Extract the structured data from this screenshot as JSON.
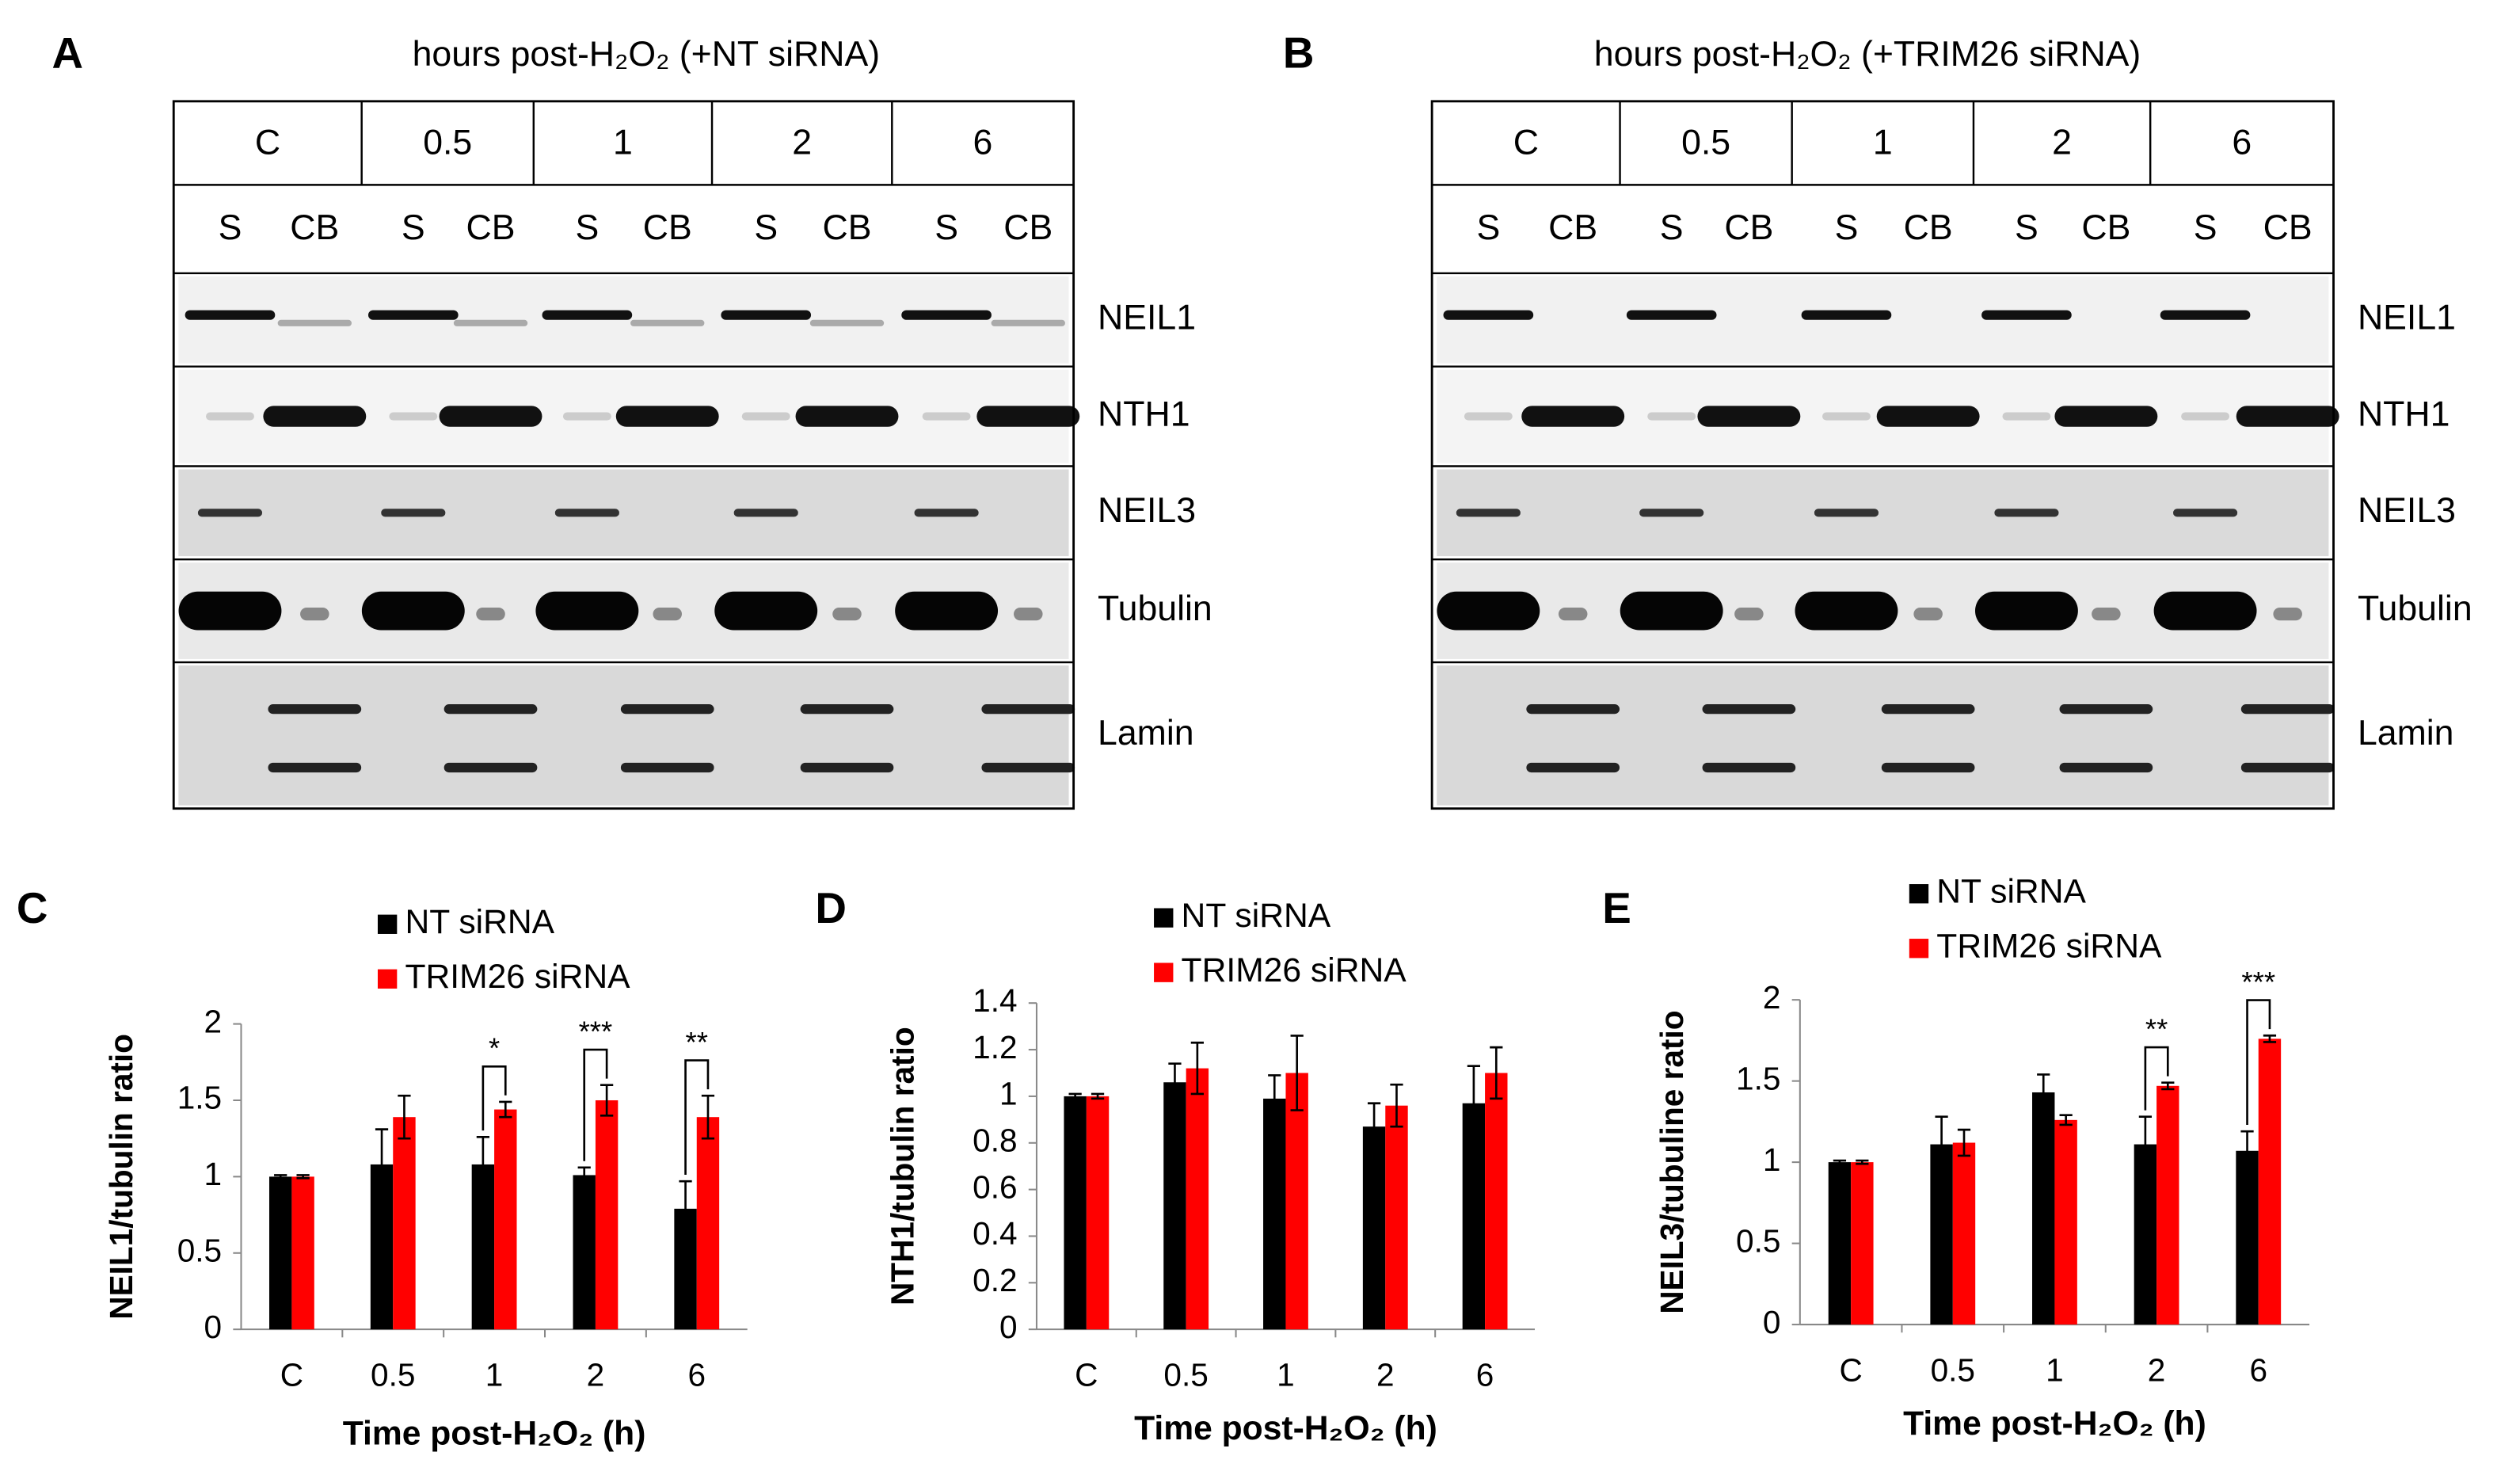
{
  "blots": [
    {
      "letter": "A",
      "title": "hours post-H₂O₂ (+NT siRNA)",
      "groups": [
        "C",
        "0.5",
        "1",
        "2",
        "6"
      ],
      "lanes": [
        "S",
        "CB",
        "S",
        "CB",
        "S",
        "CB",
        "S",
        "CB",
        "S",
        "CB"
      ],
      "proteins": [
        "NEIL1",
        "NTH1",
        "NEIL3",
        "Tubulin",
        "Lamin"
      ]
    },
    {
      "letter": "B",
      "title": "hours post-H₂O₂ (+TRIM26 siRNA)",
      "groups": [
        "C",
        "0.5",
        "1",
        "2",
        "6"
      ],
      "lanes": [
        "S",
        "CB",
        "S",
        "CB",
        "S",
        "CB",
        "S",
        "CB",
        "S",
        "CB"
      ],
      "proteins": [
        "NEIL1",
        "NTH1",
        "NEIL3",
        "Tubulin",
        "Lamin"
      ]
    }
  ],
  "chart_data": [
    {
      "type": "bar",
      "panel": "C",
      "ylabel": "NEIL1/tubulin ratio",
      "xlabel": "Time post-H₂O₂ (h)",
      "categories": [
        "C",
        "0.5",
        "1",
        "2",
        "6"
      ],
      "series": [
        {
          "name": "NT siRNA",
          "color": "#000000",
          "values": [
            1,
            1.08,
            1.08,
            1.01,
            0.79
          ],
          "errors": [
            0.01,
            0.23,
            0.18,
            0.05,
            0.18
          ]
        },
        {
          "name": "TRIM26 siRNA",
          "color": "#ff0000",
          "values": [
            1,
            1.39,
            1.44,
            1.5,
            1.39
          ],
          "errors": [
            0.01,
            0.14,
            0.05,
            0.1,
            0.14
          ]
        }
      ],
      "significance": [
        null,
        null,
        "*",
        "***",
        "**"
      ],
      "ylim": [
        0,
        2
      ],
      "yticks": [
        0,
        0.5,
        1,
        1.5,
        2
      ],
      "legend": "top"
    },
    {
      "type": "bar",
      "panel": "D",
      "ylabel": "NTH1/tubulin ratio",
      "xlabel": "Time post-H₂O₂ (h)",
      "categories": [
        "C",
        "0.5",
        "1",
        "2",
        "6"
      ],
      "series": [
        {
          "name": "NT siRNA",
          "color": "#000000",
          "values": [
            1,
            1.06,
            0.99,
            0.87,
            0.97
          ],
          "errors": [
            0.01,
            0.08,
            0.1,
            0.1,
            0.16
          ]
        },
        {
          "name": "TRIM26 siRNA",
          "color": "#ff0000",
          "values": [
            1,
            1.12,
            1.1,
            0.96,
            1.1
          ],
          "errors": [
            0.01,
            0.11,
            0.16,
            0.09,
            0.11
          ]
        }
      ],
      "significance": [
        null,
        null,
        null,
        null,
        null
      ],
      "ylim": [
        0,
        1.4
      ],
      "yticks": [
        0,
        0.2,
        0.4,
        0.6,
        0.8,
        1,
        1.2,
        1.4
      ],
      "legend": "top"
    },
    {
      "type": "bar",
      "panel": "E",
      "ylabel": "NEIL3/tubuline ratio",
      "xlabel": "Time post-H₂O₂ (h)",
      "categories": [
        "C",
        "0.5",
        "1",
        "2",
        "6"
      ],
      "series": [
        {
          "name": "NT siRNA",
          "color": "#000000",
          "values": [
            1,
            1.11,
            1.43,
            1.11,
            1.07
          ],
          "errors": [
            0.01,
            0.17,
            0.11,
            0.17,
            0.12
          ]
        },
        {
          "name": "TRIM26 siRNA",
          "color": "#ff0000",
          "values": [
            1,
            1.12,
            1.26,
            1.47,
            1.76
          ],
          "errors": [
            0.01,
            0.08,
            0.03,
            0.02,
            0.02
          ]
        }
      ],
      "significance": [
        null,
        null,
        null,
        "**",
        "***"
      ],
      "ylim": [
        0,
        2
      ],
      "yticks": [
        0,
        0.5,
        1,
        1.5,
        2
      ],
      "legend": "top"
    }
  ]
}
